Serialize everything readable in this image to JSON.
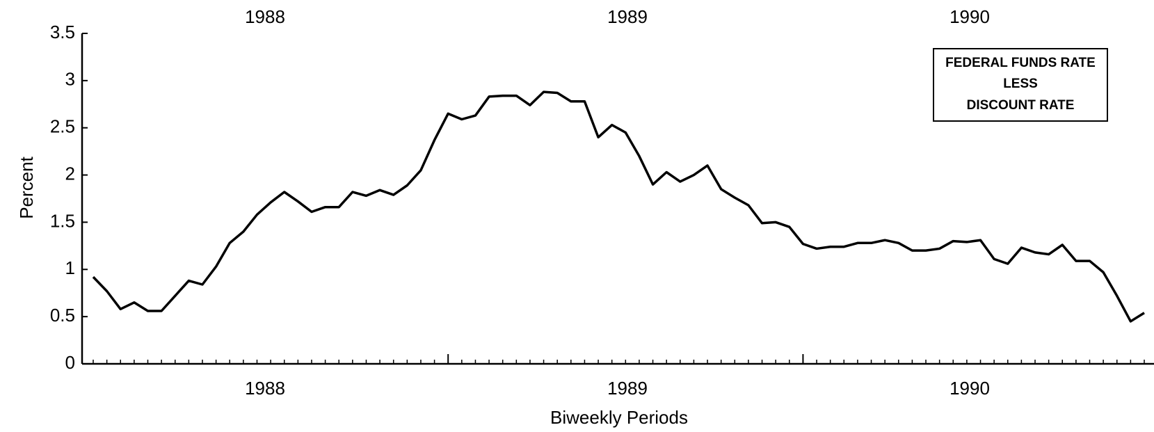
{
  "chart_data": {
    "type": "line",
    "x_label": "Biweekly Periods",
    "y_label": "Percent",
    "year_labels_top": [
      "1988",
      "1989",
      "1990"
    ],
    "year_labels_bottom": [
      "1988",
      "1989",
      "1990"
    ],
    "legend_lines": [
      "FEDERAL FUNDS RATE",
      "LESS",
      "DISCOUNT RATE"
    ],
    "categories": [
      null,
      null,
      null,
      null,
      null,
      null,
      null,
      null,
      null,
      null,
      null,
      null,
      null,
      null,
      null,
      null,
      null,
      null,
      null,
      null,
      null,
      null,
      null,
      null,
      null,
      null,
      null,
      null,
      null,
      null,
      null,
      null,
      null,
      null,
      null,
      null,
      null,
      null,
      null,
      null,
      null,
      null,
      null,
      null,
      null,
      null,
      null,
      null,
      null,
      null,
      null,
      null,
      null,
      null,
      null,
      null,
      null,
      null,
      null,
      null,
      null,
      null,
      null,
      null,
      null,
      null,
      null,
      null,
      null,
      null,
      null,
      null,
      null,
      null,
      null,
      null,
      null,
      null
    ],
    "series": [
      {
        "color": "#000000",
        "values": [
          0.92,
          0.77,
          0.58,
          0.65,
          0.56,
          0.56,
          0.72,
          0.88,
          0.84,
          1.03,
          1.28,
          1.4,
          1.58,
          1.71,
          1.82,
          1.72,
          1.61,
          1.66,
          1.66,
          1.82,
          1.78,
          1.84,
          1.79,
          1.89,
          2.05,
          2.37,
          2.65,
          2.59,
          2.63,
          2.83,
          2.84,
          2.84,
          2.74,
          2.88,
          2.87,
          2.78,
          2.78,
          2.4,
          2.53,
          2.45,
          2.2,
          1.9,
          2.03,
          1.93,
          2.0,
          2.1,
          1.85,
          1.76,
          1.68,
          1.49,
          1.5,
          1.45,
          1.27,
          1.22,
          1.24,
          1.24,
          1.28,
          1.28,
          1.31,
          1.28,
          1.2,
          1.2,
          1.22,
          1.3,
          1.29,
          1.31,
          1.11,
          1.06,
          1.23,
          1.18,
          1.16,
          1.26,
          1.09,
          1.09,
          0.97,
          0.72,
          0.45,
          0.54
        ]
      }
    ],
    "ylim": [
      0,
      3.5
    ],
    "yticks": [
      0,
      0.5,
      1,
      1.5,
      2,
      2.5,
      3,
      3.5
    ],
    "grid": false
  }
}
